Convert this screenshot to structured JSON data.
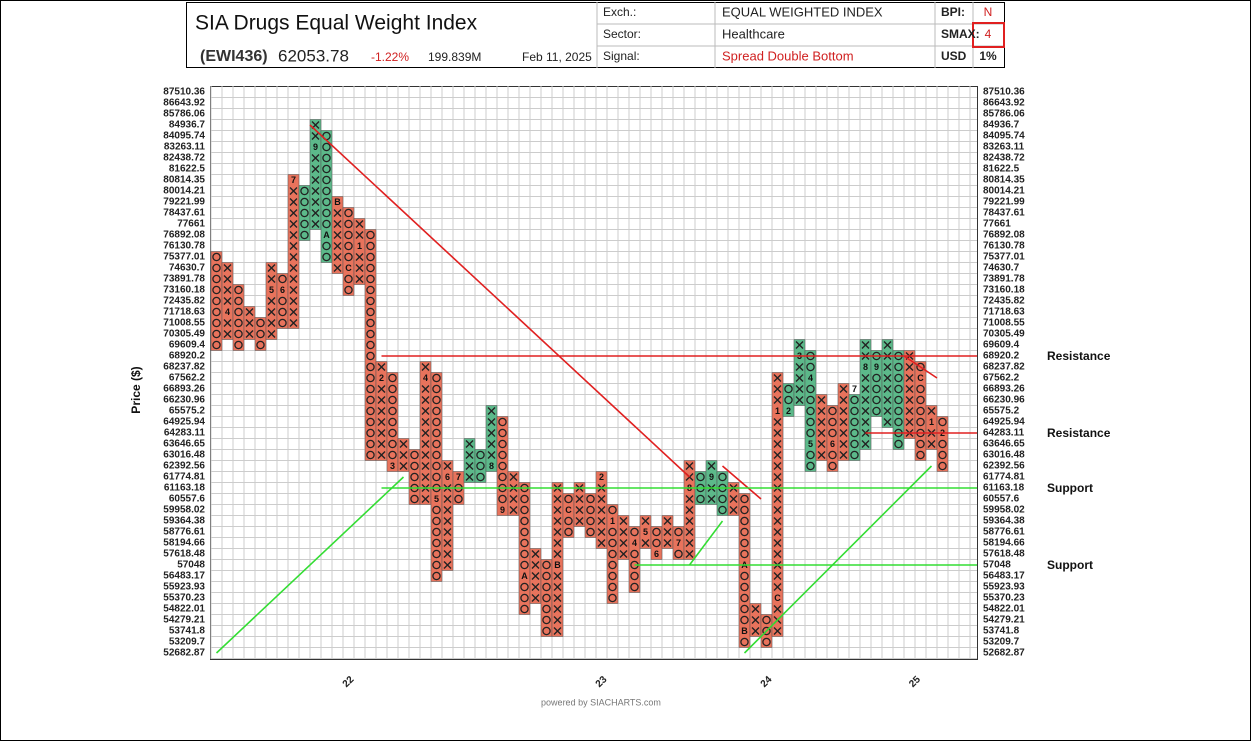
{
  "header": {
    "title": "SIA Drugs Equal Weight Index",
    "symbol": "(EWI436)",
    "price": "62053.78",
    "change": "-1.22%",
    "volume": "199.839M",
    "date": "Feb 11, 2025",
    "table": [
      [
        "Exch.:",
        "EQUAL WEIGHTED INDEX",
        "BPI:",
        "N"
      ],
      [
        "Sector:",
        "Healthcare",
        "SMAX:",
        "4"
      ],
      [
        "Signal:",
        "Spread Double Bottom",
        "USD",
        "1%"
      ]
    ]
  },
  "footer": "powered by SIACHARTS.com",
  "chart_data": {
    "type": "point-and-figure",
    "y_label": "Price ($)",
    "log_scale": true,
    "grid": true,
    "ylim": [
      52682.87,
      87510.36
    ],
    "yticks": [
      87510.36,
      86643.92,
      85786.06,
      84936.7,
      84095.74,
      83263.11,
      82438.72,
      81622.5,
      80814.35,
      80014.21,
      79221.99,
      78437.61,
      77661.0,
      76892.08,
      76130.78,
      75377.01,
      74630.7,
      73891.78,
      73160.18,
      72435.82,
      71718.63,
      71008.55,
      70305.49,
      69609.4,
      68920.2,
      68237.82,
      67562.2,
      66893.26,
      66230.96,
      65575.2,
      64925.94,
      64283.11,
      63646.65,
      63016.48,
      62392.56,
      61774.81,
      61163.18,
      60557.6,
      59958.02,
      59364.38,
      58776.61,
      58194.66,
      57618.48,
      57048.0,
      56483.17,
      55923.93,
      55370.23,
      54822.01,
      54279.21,
      53741.8,
      53209.7,
      52682.87
    ],
    "colors": {
      "red": "#e8735c",
      "green": "#5cb98a"
    },
    "columns": [
      {
        "type": "O",
        "high": 75377.01,
        "low": 69609.4,
        "color": "red"
      },
      {
        "type": "X",
        "high": 74630.7,
        "low": 70305.49,
        "color": "red",
        "markers": [
          {
            "label": "4",
            "value": 71718.63
          }
        ]
      },
      {
        "type": "O",
        "high": 73160.18,
        "low": 69609.4,
        "color": "red"
      },
      {
        "type": "X",
        "high": 71718.63,
        "low": 70305.49,
        "color": "red"
      },
      {
        "type": "O",
        "high": 71008.55,
        "low": 69609.4,
        "color": "red"
      },
      {
        "type": "X",
        "high": 74630.7,
        "low": 70305.49,
        "color": "red",
        "markers": [
          {
            "label": "5",
            "value": 73160.18
          }
        ]
      },
      {
        "type": "O",
        "high": 73891.78,
        "low": 71008.55,
        "color": "red",
        "markers": [
          {
            "label": "6",
            "value": 73160.18
          }
        ]
      },
      {
        "type": "X",
        "high": 80814.35,
        "low": 71008.55,
        "color": "red",
        "markers": [
          {
            "label": "7",
            "value": 80814.35
          }
        ]
      },
      {
        "type": "O",
        "high": 80014.21,
        "low": 76892.08,
        "color": "green"
      },
      {
        "type": "X",
        "high": 84936.7,
        "low": 77661.0,
        "color": "green",
        "markers": [
          {
            "label": "9",
            "value": 83263.11
          }
        ]
      },
      {
        "type": "O",
        "high": 84095.74,
        "low": 75377.01,
        "color": "green",
        "markers": [
          {
            "label": "A",
            "value": 76892.08
          }
        ]
      },
      {
        "type": "X",
        "high": 79221.99,
        "low": 74630.7,
        "color": "red",
        "markers": [
          {
            "label": "B",
            "value": 79221.99
          }
        ]
      },
      {
        "type": "O",
        "high": 78437.61,
        "low": 73160.18,
        "color": "red",
        "markers": [
          {
            "label": "C",
            "value": 74630.7
          }
        ]
      },
      {
        "type": "X",
        "high": 77661.0,
        "low": 73891.78,
        "color": "red",
        "markers": [
          {
            "label": "1",
            "value": 76130.78
          }
        ]
      },
      {
        "type": "O",
        "high": 76892.08,
        "low": 63016.48,
        "color": "red"
      },
      {
        "type": "X",
        "high": 68237.82,
        "low": 63016.48,
        "color": "red",
        "markers": [
          {
            "label": "2",
            "value": 67562.2
          }
        ]
      },
      {
        "type": "O",
        "high": 67562.2,
        "low": 62392.56,
        "color": "red",
        "markers": [
          {
            "label": "3",
            "value": 62392.56
          }
        ]
      },
      {
        "type": "X",
        "high": 63646.65,
        "low": 62392.56,
        "color": "red"
      },
      {
        "type": "O",
        "high": 63016.48,
        "low": 60557.6,
        "color": "red"
      },
      {
        "type": "X",
        "high": 68237.82,
        "low": 60557.6,
        "color": "red",
        "markers": [
          {
            "label": "4",
            "value": 67562.2
          }
        ]
      },
      {
        "type": "O",
        "high": 67562.2,
        "low": 56483.17,
        "color": "red",
        "markers": [
          {
            "label": "5",
            "value": 60557.6
          }
        ]
      },
      {
        "type": "X",
        "high": 62392.56,
        "low": 57048.0,
        "color": "red",
        "markers": [
          {
            "label": "6",
            "value": 61774.81
          }
        ]
      },
      {
        "type": "O",
        "high": 61774.81,
        "low": 60557.6,
        "color": "red",
        "markers": [
          {
            "label": "7",
            "value": 61774.81
          }
        ]
      },
      {
        "type": "X",
        "high": 63646.65,
        "low": 61774.81,
        "color": "green"
      },
      {
        "type": "O",
        "high": 63016.48,
        "low": 61774.81,
        "color": "green"
      },
      {
        "type": "X",
        "high": 65575.2,
        "low": 62392.56,
        "color": "green",
        "markers": [
          {
            "label": "8",
            "value": 62392.56
          }
        ]
      },
      {
        "type": "O",
        "high": 64925.94,
        "low": 59958.02,
        "color": "red",
        "markers": [
          {
            "label": "9",
            "value": 59958.02
          }
        ]
      },
      {
        "type": "X",
        "high": 61774.81,
        "low": 59958.02,
        "color": "red"
      },
      {
        "type": "O",
        "high": 61163.18,
        "low": 54822.01,
        "color": "red",
        "markers": [
          {
            "label": "A",
            "value": 56483.17
          }
        ]
      },
      {
        "type": "X",
        "high": 57618.48,
        "low": 55370.23,
        "color": "red"
      },
      {
        "type": "O",
        "high": 57048.0,
        "low": 53741.8,
        "color": "red"
      },
      {
        "type": "X",
        "high": 61163.18,
        "low": 53741.8,
        "color": "red",
        "markers": [
          {
            "label": "B",
            "value": 57048.0
          }
        ]
      },
      {
        "type": "O",
        "high": 60557.6,
        "low": 58776.61,
        "color": "red",
        "markers": [
          {
            "label": "C",
            "value": 59958.02
          }
        ]
      },
      {
        "type": "X",
        "high": 61163.18,
        "low": 59364.38,
        "color": "red"
      },
      {
        "type": "O",
        "high": 60557.6,
        "low": 58776.61,
        "color": "red"
      },
      {
        "type": "X",
        "high": 61774.81,
        "low": 58194.66,
        "color": "red",
        "markers": [
          {
            "label": "2",
            "value": 61774.81
          }
        ]
      },
      {
        "type": "O",
        "high": 59958.02,
        "low": 55370.23,
        "color": "red",
        "markers": [
          {
            "label": "1",
            "value": 59364.38
          }
        ]
      },
      {
        "type": "X",
        "high": 59364.38,
        "low": 57618.48,
        "color": "red"
      },
      {
        "type": "O",
        "high": 58776.61,
        "low": 55923.93,
        "color": "red",
        "markers": [
          {
            "label": "4",
            "value": 58194.66
          }
        ]
      },
      {
        "type": "X",
        "high": 59364.38,
        "low": 58194.66,
        "color": "red",
        "markers": [
          {
            "label": "5",
            "value": 58776.61
          }
        ]
      },
      {
        "type": "O",
        "high": 58776.61,
        "low": 57618.48,
        "color": "red",
        "markers": [
          {
            "label": "6",
            "value": 57618.48
          }
        ]
      },
      {
        "type": "X",
        "high": 59364.38,
        "low": 58194.66,
        "color": "red"
      },
      {
        "type": "O",
        "high": 58776.61,
        "low": 57618.48,
        "color": "red",
        "markers": [
          {
            "label": "7",
            "value": 58194.66
          }
        ]
      },
      {
        "type": "X",
        "high": 62392.56,
        "low": 57618.48,
        "color": "red",
        "markers": [
          {
            "label": "8",
            "value": 61163.18
          }
        ]
      },
      {
        "type": "O",
        "high": 61774.81,
        "low": 60557.6,
        "color": "green"
      },
      {
        "type": "X",
        "high": 62392.56,
        "low": 60557.6,
        "color": "green",
        "markers": [
          {
            "label": "9",
            "value": 61774.81
          }
        ]
      },
      {
        "type": "O",
        "high": 61774.81,
        "low": 59958.02,
        "color": "green"
      },
      {
        "type": "X",
        "high": 61163.18,
        "low": 59958.02,
        "color": "red"
      },
      {
        "type": "O",
        "high": 60557.6,
        "low": 53209.7,
        "color": "red",
        "markers": [
          {
            "label": "A",
            "value": 57048.0
          },
          {
            "label": "B",
            "value": 53741.8
          }
        ]
      },
      {
        "type": "X",
        "high": 54822.01,
        "low": 53741.8,
        "color": "red"
      },
      {
        "type": "O",
        "high": 54279.21,
        "low": 53209.7,
        "color": "red"
      },
      {
        "type": "X",
        "high": 67562.2,
        "low": 53741.8,
        "color": "red",
        "markers": [
          {
            "label": "C",
            "value": 55370.23
          },
          {
            "label": "1",
            "value": 65575.2
          }
        ]
      },
      {
        "type": "O",
        "high": 66893.26,
        "low": 65575.2,
        "color": "green",
        "markers": [
          {
            "label": "2",
            "value": 65575.2
          }
        ]
      },
      {
        "type": "X",
        "high": 69609.4,
        "low": 66230.96,
        "color": "green",
        "markers": [
          {
            "label": "3",
            "value": 68920.2
          }
        ]
      },
      {
        "type": "O",
        "high": 68920.2,
        "low": 62392.56,
        "color": "green",
        "markers": [
          {
            "label": "4",
            "value": 67562.2
          },
          {
            "label": "5",
            "value": 63646.65
          }
        ]
      },
      {
        "type": "X",
        "high": 66230.96,
        "low": 63016.48,
        "color": "red"
      },
      {
        "type": "O",
        "high": 65575.2,
        "low": 62392.56,
        "color": "red",
        "markers": [
          {
            "label": "6",
            "value": 63646.65
          }
        ]
      },
      {
        "type": "X",
        "high": 66893.26,
        "low": 63016.48,
        "color": "red"
      },
      {
        "type": "O",
        "high": 66230.96,
        "low": 63016.48,
        "color": "green",
        "markers": [
          {
            "label": "7",
            "value": 66893.26
          }
        ]
      },
      {
        "type": "X",
        "high": 69609.4,
        "low": 63646.65,
        "color": "green",
        "markers": [
          {
            "label": "8",
            "value": 68237.82
          }
        ]
      },
      {
        "type": "O",
        "high": 68920.2,
        "low": 65575.2,
        "color": "green",
        "markers": [
          {
            "label": "9",
            "value": 68237.82
          }
        ]
      },
      {
        "type": "X",
        "high": 69609.4,
        "low": 64925.94,
        "color": "green"
      },
      {
        "type": "O",
        "high": 68920.2,
        "low": 63646.65,
        "color": "green"
      },
      {
        "type": "X",
        "high": 68920.2,
        "low": 64283.11,
        "color": "red"
      },
      {
        "type": "O",
        "high": 68237.82,
        "low": 63016.48,
        "color": "red",
        "markers": [
          {
            "label": "C",
            "value": 67562.2
          }
        ]
      },
      {
        "type": "X",
        "high": 65575.2,
        "low": 63646.65,
        "color": "red",
        "markers": [
          {
            "label": "1",
            "value": 64925.94
          }
        ]
      },
      {
        "type": "O",
        "high": 64925.94,
        "low": 62392.56,
        "color": "red",
        "markers": [
          {
            "label": "2",
            "value": 64283.11
          }
        ]
      }
    ],
    "levels": [
      {
        "label": "Resistance",
        "value": 68920.2,
        "start_column": 15,
        "color": "#e02020"
      },
      {
        "label": "Resistance",
        "value": 64283.11,
        "start_column": 59,
        "color": "#e02020"
      },
      {
        "label": "Support",
        "value": 61163.18,
        "start_column": 15,
        "color": "#33dd33"
      },
      {
        "label": "Support",
        "value": 57048.0,
        "start_column": 38,
        "color": "#33dd33"
      }
    ],
    "trendlines": [
      {
        "color": "#e02020",
        "points": [
          [
            8.5,
            84936.7
          ],
          [
            43,
            61774.81
          ]
        ]
      },
      {
        "color": "#e02020",
        "points": [
          [
            46,
            62392.56
          ],
          [
            49.5,
            60557.6
          ]
        ]
      },
      {
        "color": "#e02020",
        "points": [
          [
            62.5,
            68920.2
          ],
          [
            65.5,
            67562.2
          ]
        ]
      },
      {
        "color": "#33dd33",
        "points": [
          [
            0,
            52682.87
          ],
          [
            17,
            61774.81
          ]
        ]
      },
      {
        "color": "#33dd33",
        "points": [
          [
            43,
            57048.0
          ],
          [
            46,
            59364.38
          ]
        ]
      },
      {
        "color": "#33dd33",
        "points": [
          [
            48,
            52682.87
          ],
          [
            65,
            62392.56
          ]
        ]
      }
    ],
    "year_labels": [
      {
        "label": "22",
        "column": 12
      },
      {
        "label": "23",
        "column": 35
      },
      {
        "label": "24",
        "column": 50
      },
      {
        "label": "25",
        "column": 63.5
      }
    ]
  }
}
